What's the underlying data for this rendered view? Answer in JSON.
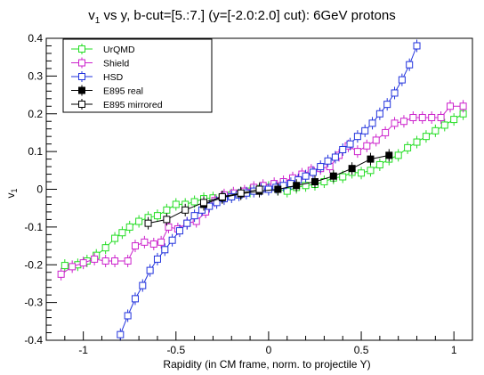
{
  "chart_data": {
    "type": "line",
    "title": "v",
    "title_sub": "1",
    "title_rest": " vs y, b-cut=[5.:7.] (y=[-2.0:2.0] cut): 6GeV protons",
    "xlabel": "Rapidity (in CM frame, norm. to projectile Y)",
    "ylabel": "v",
    "ylabel_sub": "1",
    "xlim": [
      -1.2,
      1.1
    ],
    "ylim": [
      -0.4,
      0.4
    ],
    "x_ticks": [
      -1,
      -0.5,
      0,
      0.5,
      1
    ],
    "x_tick_labels": [
      "-1",
      "-0.5",
      "0",
      "0.5",
      "1"
    ],
    "y_ticks": [
      -0.4,
      -0.3,
      -0.2,
      -0.1,
      0,
      0.1,
      0.2,
      0.3,
      0.4
    ],
    "y_tick_labels": [
      "-0.4",
      "-0.3",
      "-0.2",
      "-0.1",
      "0",
      "0.1",
      "0.2",
      "0.3",
      "0.4"
    ],
    "grid": false,
    "legend_position": "top-left",
    "series": [
      {
        "name": "UrQMD",
        "color": "#22dd22",
        "marker": "open-square",
        "x": [
          -1.1,
          -1.03,
          -0.98,
          -0.93,
          -0.88,
          -0.83,
          -0.79,
          -0.75,
          -0.7,
          -0.65,
          -0.6,
          -0.55,
          -0.5,
          -0.45,
          -0.4,
          -0.35,
          -0.3,
          -0.25,
          -0.2,
          -0.15,
          -0.1,
          -0.05,
          0.0,
          0.05,
          0.1,
          0.15,
          0.2,
          0.25,
          0.3,
          0.35,
          0.4,
          0.45,
          0.5,
          0.55,
          0.6,
          0.65,
          0.7,
          0.75,
          0.8,
          0.85,
          0.9,
          0.95,
          1.0,
          1.05
        ],
        "y": [
          -0.202,
          -0.2,
          -0.19,
          -0.175,
          -0.155,
          -0.13,
          -0.115,
          -0.1,
          -0.085,
          -0.075,
          -0.07,
          -0.055,
          -0.04,
          -0.04,
          -0.033,
          -0.025,
          -0.023,
          -0.02,
          -0.015,
          -0.01,
          -0.005,
          0.002,
          0.005,
          0.0,
          -0.005,
          0.005,
          0.01,
          0.013,
          0.02,
          0.03,
          0.033,
          0.045,
          0.043,
          0.05,
          0.065,
          0.08,
          0.09,
          0.11,
          0.125,
          0.14,
          0.155,
          0.17,
          0.185,
          0.2
        ]
      },
      {
        "name": "Shield",
        "color": "#cc22cc",
        "marker": "open-square",
        "x": [
          -1.12,
          -1.06,
          -1.0,
          -0.94,
          -0.88,
          -0.83,
          -0.76,
          -0.72,
          -0.67,
          -0.62,
          -0.58,
          -0.54,
          -0.49,
          -0.44,
          -0.39,
          -0.34,
          -0.29,
          -0.24,
          -0.19,
          -0.13,
          -0.08,
          -0.03,
          0.03,
          0.08,
          0.13,
          0.18,
          0.23,
          0.28,
          0.33,
          0.38,
          0.43,
          0.48,
          0.53,
          0.58,
          0.63,
          0.68,
          0.73,
          0.78,
          0.83,
          0.88,
          0.93,
          0.98,
          1.05
        ],
        "y": [
          -0.225,
          -0.205,
          -0.195,
          -0.185,
          -0.19,
          -0.19,
          -0.19,
          -0.15,
          -0.14,
          -0.145,
          -0.14,
          -0.1,
          -0.105,
          -0.09,
          -0.085,
          -0.06,
          -0.03,
          -0.015,
          -0.01,
          -0.005,
          0.005,
          0.01,
          0.015,
          0.02,
          0.03,
          0.04,
          0.05,
          0.055,
          0.06,
          0.09,
          0.115,
          0.1,
          0.115,
          0.13,
          0.15,
          0.175,
          0.18,
          0.19,
          0.19,
          0.19,
          0.19,
          0.22,
          0.22
        ]
      },
      {
        "name": "HSD",
        "color": "#2233dd",
        "marker": "open-square",
        "x": [
          -0.8,
          -0.76,
          -0.72,
          -0.68,
          -0.64,
          -0.6,
          -0.56,
          -0.52,
          -0.48,
          -0.44,
          -0.4,
          -0.36,
          -0.32,
          -0.28,
          -0.24,
          -0.2,
          -0.16,
          -0.12,
          -0.08,
          -0.04,
          0.0,
          0.04,
          0.08,
          0.12,
          0.16,
          0.2,
          0.24,
          0.28,
          0.32,
          0.36,
          0.4,
          0.44,
          0.48,
          0.52,
          0.56,
          0.6,
          0.64,
          0.68,
          0.72,
          0.76,
          0.8
        ],
        "y": [
          -0.385,
          -0.335,
          -0.29,
          -0.255,
          -0.215,
          -0.185,
          -0.16,
          -0.135,
          -0.11,
          -0.09,
          -0.07,
          -0.055,
          -0.045,
          -0.035,
          -0.025,
          -0.02,
          -0.015,
          -0.01,
          -0.005,
          0.0,
          0.0,
          0.005,
          0.01,
          0.015,
          0.025,
          0.035,
          0.045,
          0.06,
          0.075,
          0.085,
          0.105,
          0.12,
          0.14,
          0.155,
          0.175,
          0.2,
          0.225,
          0.255,
          0.29,
          0.33,
          0.38
        ]
      },
      {
        "name": "E895 real",
        "color": "#000000",
        "marker": "filled-square",
        "x": [
          -0.35,
          -0.25,
          -0.15,
          -0.05,
          0.05,
          0.15,
          0.25,
          0.35,
          0.45,
          0.55,
          0.65
        ],
        "y": [
          -0.04,
          -0.022,
          -0.012,
          -0.005,
          0.0,
          0.01,
          0.02,
          0.035,
          0.055,
          0.08,
          0.09
        ]
      },
      {
        "name": "E895 mirrored",
        "color": "#000000",
        "marker": "open-square",
        "x": [
          -0.65,
          -0.55,
          -0.45,
          -0.35,
          -0.25,
          -0.15,
          -0.05
        ],
        "y": [
          -0.09,
          -0.08,
          -0.055,
          -0.035,
          -0.02,
          -0.01,
          0.0
        ]
      }
    ]
  }
}
